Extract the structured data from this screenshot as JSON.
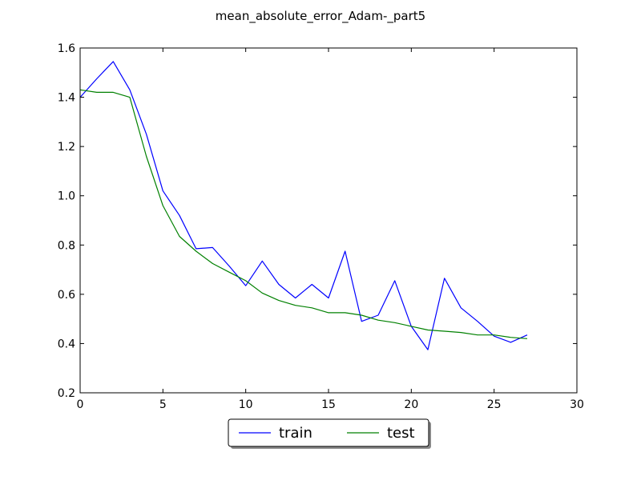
{
  "chart_data": {
    "type": "line",
    "title": "mean_absolute_error_Adam-_part5",
    "xlabel": "",
    "ylabel": "",
    "xlim": [
      0,
      30
    ],
    "ylim": [
      0.2,
      1.6
    ],
    "xticks": [
      "0",
      "5",
      "10",
      "15",
      "20",
      "25",
      "30"
    ],
    "yticks": [
      "0.2",
      "0.4",
      "0.6",
      "0.8",
      "1.0",
      "1.2",
      "1.4",
      "1.6"
    ],
    "grid": false,
    "legend_position": "below-center",
    "x": [
      0,
      1,
      2,
      3,
      4,
      5,
      6,
      7,
      8,
      9,
      10,
      11,
      12,
      13,
      14,
      15,
      16,
      17,
      18,
      19,
      20,
      21,
      22,
      23,
      24,
      25,
      26,
      27
    ],
    "series": [
      {
        "name": "train",
        "color": "#0000ff",
        "values": [
          1.4,
          1.475,
          1.545,
          1.43,
          1.25,
          1.02,
          0.92,
          0.785,
          0.79,
          0.715,
          0.635,
          0.735,
          0.64,
          0.585,
          0.64,
          0.585,
          0.775,
          0.49,
          0.515,
          0.655,
          0.47,
          0.375,
          0.665,
          0.545,
          0.49,
          0.43,
          0.405,
          0.435
        ]
      },
      {
        "name": "test",
        "color": "#008000",
        "values": [
          1.43,
          1.42,
          1.42,
          1.4,
          1.16,
          0.96,
          0.835,
          0.775,
          0.725,
          0.69,
          0.655,
          0.605,
          0.575,
          0.555,
          0.545,
          0.525,
          0.525,
          0.515,
          0.495,
          0.485,
          0.47,
          0.455,
          0.45,
          0.445,
          0.435,
          0.435,
          0.425,
          0.42
        ]
      }
    ]
  }
}
